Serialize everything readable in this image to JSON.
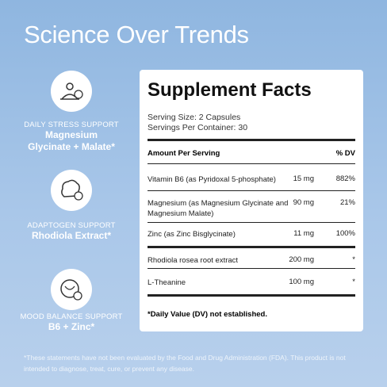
{
  "header": {
    "title": "Science Over Trends"
  },
  "features": [
    {
      "label": "DAILY STRESS SUPPORT",
      "ingredient": [
        "Magnesium",
        "Glycinate + Malate*"
      ]
    },
    {
      "label": "ADAPTOGEN SUPPORT",
      "ingredient": [
        "Rhodiola Extract*"
      ]
    },
    {
      "label": "MOOD BALANCE SUPPORT",
      "ingredient": [
        "B6 + Zinc*"
      ]
    }
  ],
  "facts": {
    "title": "Supplement Facts",
    "serving_size": "Serving Size: 2 Capsules",
    "servings": "Servings Per Container: 30",
    "header": [
      "Amount Per Serving",
      "% DV"
    ],
    "rows": [
      [
        "Vitamin B6 (as Pyridoxal 5-phosphate)",
        "15 mg",
        "882%"
      ],
      [
        "Magnesium (as Magnesium Glycinate and Magnesium Malate)",
        "90 mg",
        "21%"
      ],
      [
        "Zinc (as Zinc Bisglycinate)",
        "11 mg",
        "100%"
      ],
      [
        "Rhodiola rosea root extract",
        "200 mg",
        "*"
      ],
      [
        "L-Theanine",
        "100 mg",
        "*"
      ]
    ],
    "footnote": "*Daily Value (DV) not established."
  },
  "disclaimer": "*These statements have not been evaluated by the Food and Drug Administration (FDA). This product is not intended to diagnose, treat, cure, or prevent any disease."
}
